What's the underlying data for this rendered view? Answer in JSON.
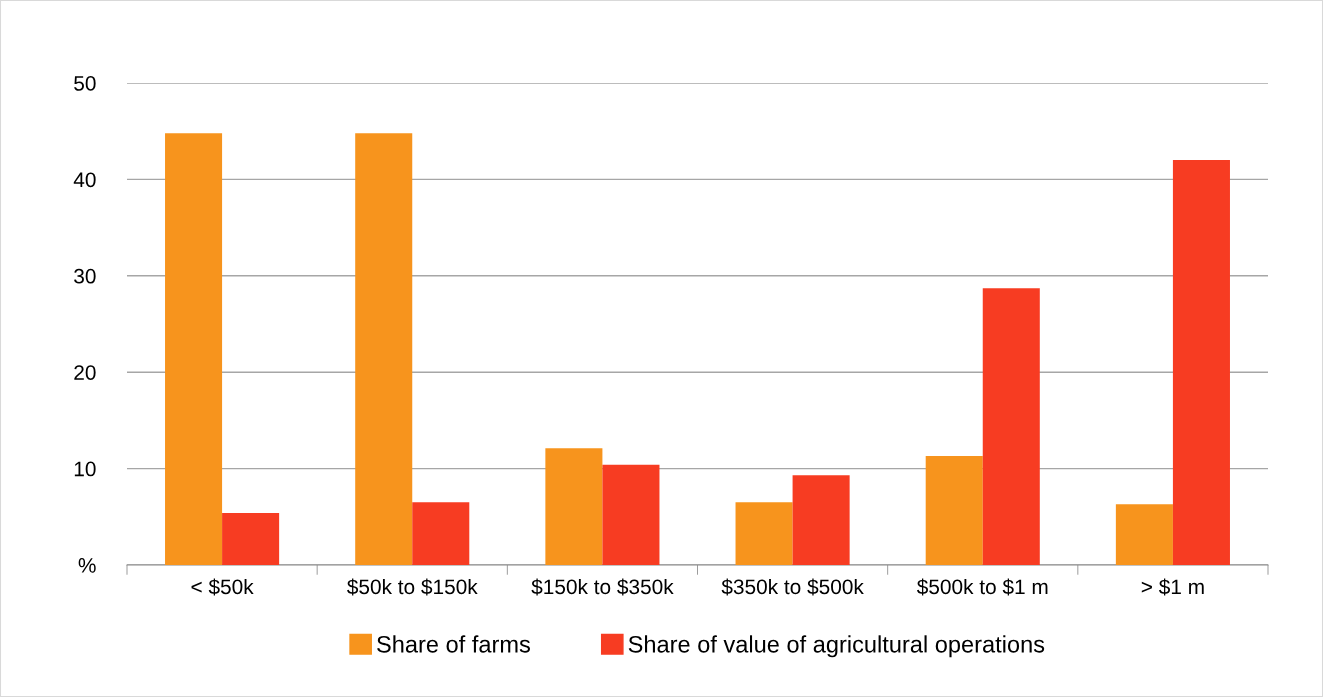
{
  "chart_data": {
    "type": "bar",
    "categories": [
      "< $50k",
      "$50k to $150k",
      "$150k to $350k",
      "$350k to $500k",
      "$500k to $1 m",
      "> $1 m"
    ],
    "series": [
      {
        "name": "Share of farms",
        "color": "#f7941d",
        "values": [
          44.8,
          44.8,
          12.1,
          6.5,
          11.3,
          6.3
        ]
      },
      {
        "name": "Share of value of agricultural operations",
        "color": "#f73c22",
        "values": [
          5.4,
          6.5,
          10.4,
          9.3,
          28.7,
          42.0
        ]
      }
    ],
    "ylim": [
      0,
      50
    ],
    "yticks": [
      {
        "value": 0,
        "label": "%"
      },
      10,
      20,
      30,
      40,
      50
    ],
    "grid": "y",
    "legend": "bottom"
  }
}
